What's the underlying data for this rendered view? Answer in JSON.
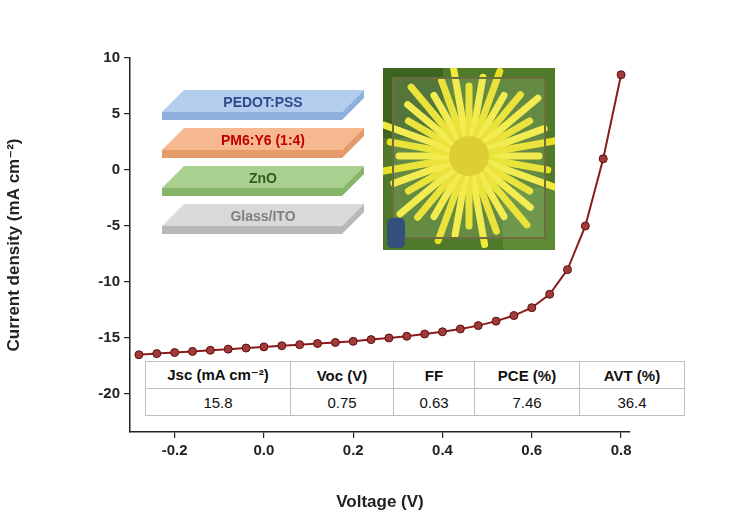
{
  "chart_data": {
    "type": "line",
    "x_label": "Voltage (V)",
    "y_label": "Current density (mA cm⁻²)",
    "x": [
      -0.28,
      -0.24,
      -0.2,
      -0.16,
      -0.12,
      -0.08,
      -0.04,
      0.0,
      0.04,
      0.08,
      0.12,
      0.16,
      0.2,
      0.24,
      0.28,
      0.32,
      0.36,
      0.4,
      0.44,
      0.48,
      0.52,
      0.56,
      0.6,
      0.64,
      0.68,
      0.72,
      0.76,
      0.8
    ],
    "values": [
      -16.5,
      -16.4,
      -16.3,
      -16.2,
      -16.1,
      -16.0,
      -15.9,
      -15.8,
      -15.7,
      -15.6,
      -15.5,
      -15.4,
      -15.3,
      -15.15,
      -15.0,
      -14.85,
      -14.65,
      -14.45,
      -14.2,
      -13.9,
      -13.5,
      -13.0,
      -12.3,
      -11.1,
      -8.9,
      -5.0,
      1.0,
      8.5
    ],
    "color": "#8b1a1a",
    "marker": "circle",
    "line_style": "solid",
    "grid": false,
    "xlim": [
      -0.3,
      0.82
    ],
    "xticks": [
      -0.2,
      {
        "value": 0,
        "label": "0.0"
      },
      0.2,
      0.4,
      0.6,
      0.8
    ],
    "ylim": [
      -23.4,
      10
    ],
    "yticks": [
      -20,
      -15,
      -10,
      -5,
      0,
      5,
      10
    ],
    "device_stack": [
      {
        "label": "PEDOT:PSS",
        "color": "#2f4a8c"
      },
      {
        "label": "PM6:Y6 (1:4)",
        "color": "#c00000"
      },
      {
        "label": "ZnO",
        "color": "#2e5e1e"
      },
      {
        "label": "Glass/ITO",
        "color": "#7f7f7f"
      }
    ],
    "table": {
      "columns": [
        "Jsc (mA cm⁻²)",
        "Voc (V)",
        "FF",
        "PCE (%)",
        "AVT (%)"
      ],
      "values": [
        15.8,
        0.75,
        0.63,
        7.46,
        36.4
      ]
    }
  }
}
